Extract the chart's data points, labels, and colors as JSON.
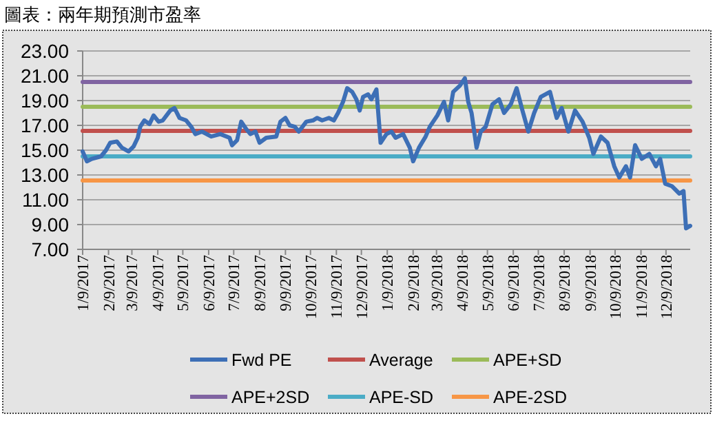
{
  "chart_data": {
    "type": "line",
    "title": "圖表：兩年期預測市盈率",
    "xlim": [
      "2017-01-09",
      "2019-01-07"
    ],
    "xticks": [
      {
        "value": "2017-01-09",
        "label": "1/9/2017"
      },
      {
        "value": "2017-02-09",
        "label": "2/9/2017"
      },
      {
        "value": "2017-03-09",
        "label": "3/9/2017"
      },
      {
        "value": "2017-04-09",
        "label": "4/9/2017"
      },
      {
        "value": "2017-05-09",
        "label": "5/9/2017"
      },
      {
        "value": "2017-06-09",
        "label": "6/9/2017"
      },
      {
        "value": "2017-07-09",
        "label": "7/9/2017"
      },
      {
        "value": "2017-08-09",
        "label": "8/9/2017"
      },
      {
        "value": "2017-09-09",
        "label": "9/9/2017"
      },
      {
        "value": "2017-10-09",
        "label": "10/9/2017"
      },
      {
        "value": "2017-11-09",
        "label": "11/9/2017"
      },
      {
        "value": "2017-12-09",
        "label": "12/9/2017"
      },
      {
        "value": "2018-01-09",
        "label": "1/9/2018"
      },
      {
        "value": "2018-02-09",
        "label": "2/9/2018"
      },
      {
        "value": "2018-03-09",
        "label": "3/9/2018"
      },
      {
        "value": "2018-04-09",
        "label": "4/9/2018"
      },
      {
        "value": "2018-05-09",
        "label": "5/9/2018"
      },
      {
        "value": "2018-06-09",
        "label": "6/9/2018"
      },
      {
        "value": "2018-07-09",
        "label": "7/9/2018"
      },
      {
        "value": "2018-08-09",
        "label": "8/9/2018"
      },
      {
        "value": "2018-09-09",
        "label": "9/9/2018"
      },
      {
        "value": "2018-10-09",
        "label": "10/9/2018"
      },
      {
        "value": "2018-11-09",
        "label": "11/9/2018"
      },
      {
        "value": "2018-12-09",
        "label": "12/9/2018"
      }
    ],
    "ylim": [
      7,
      23
    ],
    "yticks": [
      {
        "value": 7,
        "label": "7.00"
      },
      {
        "value": 9,
        "label": "9.00"
      },
      {
        "value": 11,
        "label": "11.00"
      },
      {
        "value": 13,
        "label": "13.00"
      },
      {
        "value": 15,
        "label": "15.00"
      },
      {
        "value": 17,
        "label": "17.00"
      },
      {
        "value": 19,
        "label": "19.00"
      },
      {
        "value": 21,
        "label": "21.00"
      },
      {
        "value": 23,
        "label": "23.00"
      }
    ],
    "grid": "y",
    "legend": "bottom",
    "series": [
      {
        "name": "Fwd PE",
        "color": "#3d6fb6",
        "x": [
          "2017-01-09",
          "2017-01-14",
          "2017-01-20",
          "2017-01-31",
          "2017-02-06",
          "2017-02-11",
          "2017-02-19",
          "2017-02-25",
          "2017-03-05",
          "2017-03-11",
          "2017-03-16",
          "2017-03-19",
          "2017-03-24",
          "2017-03-30",
          "2017-04-04",
          "2017-04-10",
          "2017-04-15",
          "2017-04-24",
          "2017-04-29",
          "2017-05-05",
          "2017-05-13",
          "2017-05-19",
          "2017-05-24",
          "2017-06-01",
          "2017-06-12",
          "2017-06-23",
          "2017-07-04",
          "2017-07-07",
          "2017-07-13",
          "2017-07-18",
          "2017-07-24",
          "2017-07-29",
          "2017-08-04",
          "2017-08-09",
          "2017-08-17",
          "2017-08-29",
          "2017-09-03",
          "2017-09-09",
          "2017-09-14",
          "2017-09-20",
          "2017-09-25",
          "2017-10-04",
          "2017-10-12",
          "2017-10-17",
          "2017-10-23",
          "2017-10-31",
          "2017-11-06",
          "2017-11-11",
          "2017-11-17",
          "2017-11-22",
          "2017-11-28",
          "2017-12-03",
          "2017-12-07",
          "2017-12-11",
          "2017-12-17",
          "2017-12-21",
          "2017-12-27",
          "2018-01-01",
          "2018-01-08",
          "2018-01-14",
          "2018-01-19",
          "2018-01-28",
          "2018-02-05",
          "2018-02-09",
          "2018-02-16",
          "2018-02-24",
          "2018-03-01",
          "2018-03-10",
          "2018-03-18",
          "2018-03-23",
          "2018-03-29",
          "2018-04-06",
          "2018-04-12",
          "2018-04-16",
          "2018-04-20",
          "2018-04-26",
          "2018-05-01",
          "2018-05-07",
          "2018-05-15",
          "2018-05-23",
          "2018-05-29",
          "2018-06-06",
          "2018-06-13",
          "2018-06-20",
          "2018-06-27",
          "2018-07-04",
          "2018-07-12",
          "2018-07-23",
          "2018-07-31",
          "2018-08-06",
          "2018-08-14",
          "2018-08-22",
          "2018-08-31",
          "2018-09-08",
          "2018-09-13",
          "2018-09-22",
          "2018-09-30",
          "2018-10-08",
          "2018-10-14",
          "2018-10-22",
          "2018-10-27",
          "2018-11-02",
          "2018-11-10",
          "2018-11-19",
          "2018-11-27",
          "2018-12-02",
          "2018-12-08",
          "2018-12-16",
          "2018-12-25",
          "2018-12-30",
          "2019-01-02",
          "2019-01-07"
        ],
        "values": [
          14.9,
          14.1,
          14.3,
          14.5,
          15.0,
          15.6,
          15.7,
          15.2,
          14.9,
          15.3,
          16.0,
          16.9,
          17.4,
          17.1,
          17.8,
          17.3,
          17.4,
          18.2,
          18.4,
          17.6,
          17.4,
          16.9,
          16.3,
          16.5,
          16.1,
          16.3,
          16.0,
          15.4,
          15.8,
          17.3,
          16.7,
          16.3,
          16.5,
          15.6,
          16.0,
          16.1,
          17.3,
          17.6,
          17.0,
          16.9,
          16.5,
          17.3,
          17.4,
          17.6,
          17.4,
          17.6,
          17.4,
          18.0,
          18.9,
          20.0,
          19.7,
          19.1,
          18.2,
          19.3,
          19.5,
          19.1,
          19.9,
          15.6,
          16.3,
          16.5,
          16.0,
          16.3,
          15.2,
          14.1,
          15.2,
          16.1,
          16.9,
          17.8,
          18.9,
          17.4,
          19.7,
          20.2,
          20.8,
          18.9,
          18.0,
          15.2,
          16.5,
          16.9,
          18.7,
          19.1,
          18.0,
          18.7,
          20.0,
          18.2,
          16.5,
          18.0,
          19.3,
          19.7,
          17.6,
          18.4,
          16.5,
          18.2,
          17.3,
          16.0,
          14.7,
          16.1,
          15.6,
          13.7,
          12.8,
          13.7,
          12.8,
          15.4,
          14.3,
          14.7,
          13.7,
          14.3,
          12.3,
          12.1,
          11.5,
          11.7,
          8.7,
          8.9
        ]
      },
      {
        "name": "Average",
        "color": "#c0504d",
        "x": [
          "2017-01-09",
          "2019-01-07"
        ],
        "values": [
          16.55,
          16.55
        ]
      },
      {
        "name": "APE+SD",
        "color": "#9bbb59",
        "x": [
          "2017-01-09",
          "2019-01-07"
        ],
        "values": [
          18.5,
          18.5
        ]
      },
      {
        "name": "APE+2SD",
        "color": "#8064a2",
        "x": [
          "2017-01-09",
          "2019-01-07"
        ],
        "values": [
          20.5,
          20.5
        ]
      },
      {
        "name": "APE-SD",
        "color": "#4bacc6",
        "x": [
          "2017-01-09",
          "2019-01-07"
        ],
        "values": [
          14.5,
          14.5
        ]
      },
      {
        "name": "APE-2SD",
        "color": "#f79646",
        "x": [
          "2017-01-09",
          "2019-01-07"
        ],
        "values": [
          12.55,
          12.55
        ]
      }
    ]
  }
}
